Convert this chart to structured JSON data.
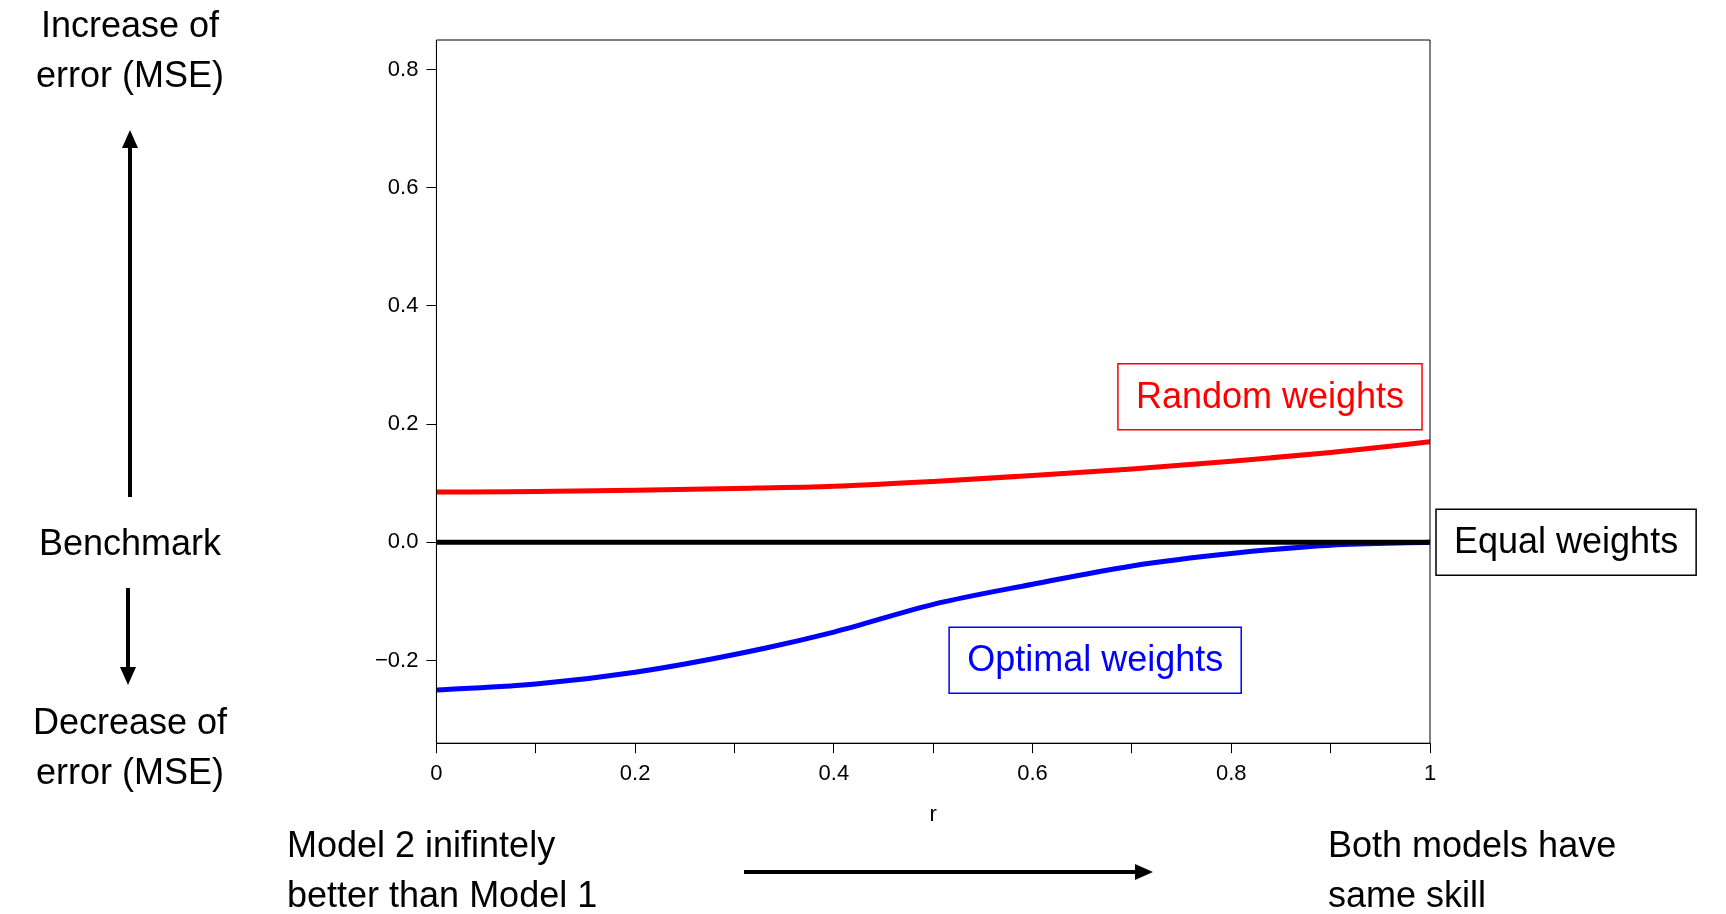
{
  "chart_data": {
    "type": "line",
    "xlabel": "r",
    "xlim": [
      0,
      1
    ],
    "ylim": [
      -0.34,
      0.85
    ],
    "xticks": [
      0,
      {
        "value": 0.1,
        "label": null
      },
      0.2,
      {
        "value": 0.3,
        "label": null
      },
      0.4,
      {
        "value": 0.5,
        "label": null
      },
      0.6,
      {
        "value": 0.7,
        "label": null
      },
      0.8,
      {
        "value": 0.9,
        "label": null
      },
      1
    ],
    "yticks": [
      {
        "value": -0.2,
        "label": "−0.2"
      },
      {
        "value": 0,
        "label": "0.0"
      },
      0.2,
      0.4,
      0.6,
      0.8
    ],
    "grid": false,
    "legend": false,
    "marker": "none",
    "line_style": "solid",
    "series": [
      {
        "name": "Random weights",
        "color": "#ff0000",
        "x": [
          0,
          0.1,
          0.2,
          0.3,
          0.4,
          0.5,
          0.6,
          0.7,
          0.8,
          0.9,
          1
        ],
        "values": [
          0.085,
          0.086,
          0.088,
          0.091,
          0.095,
          0.103,
          0.113,
          0.124,
          0.137,
          0.152,
          0.17
        ]
      },
      {
        "name": "Equal weights",
        "color": "#000000",
        "x": [
          0,
          1
        ],
        "values": [
          0,
          0
        ]
      },
      {
        "name": "Optimal weights",
        "color": "#0000ff",
        "x": [
          0,
          0.1,
          0.2,
          0.3,
          0.4,
          0.5,
          0.6,
          0.7,
          0.8,
          0.9,
          1
        ],
        "values": [
          -0.25,
          -0.24,
          -0.22,
          -0.19,
          -0.152,
          -0.105,
          -0.071,
          -0.04,
          -0.019,
          -0.005,
          0
        ]
      }
    ],
    "annotations": [
      "Increase of error (MSE)",
      "Benchmark",
      "Decrease of error (MSE)",
      "Model 2 inifintely better than Model 1",
      "Both models have same skill"
    ]
  }
}
